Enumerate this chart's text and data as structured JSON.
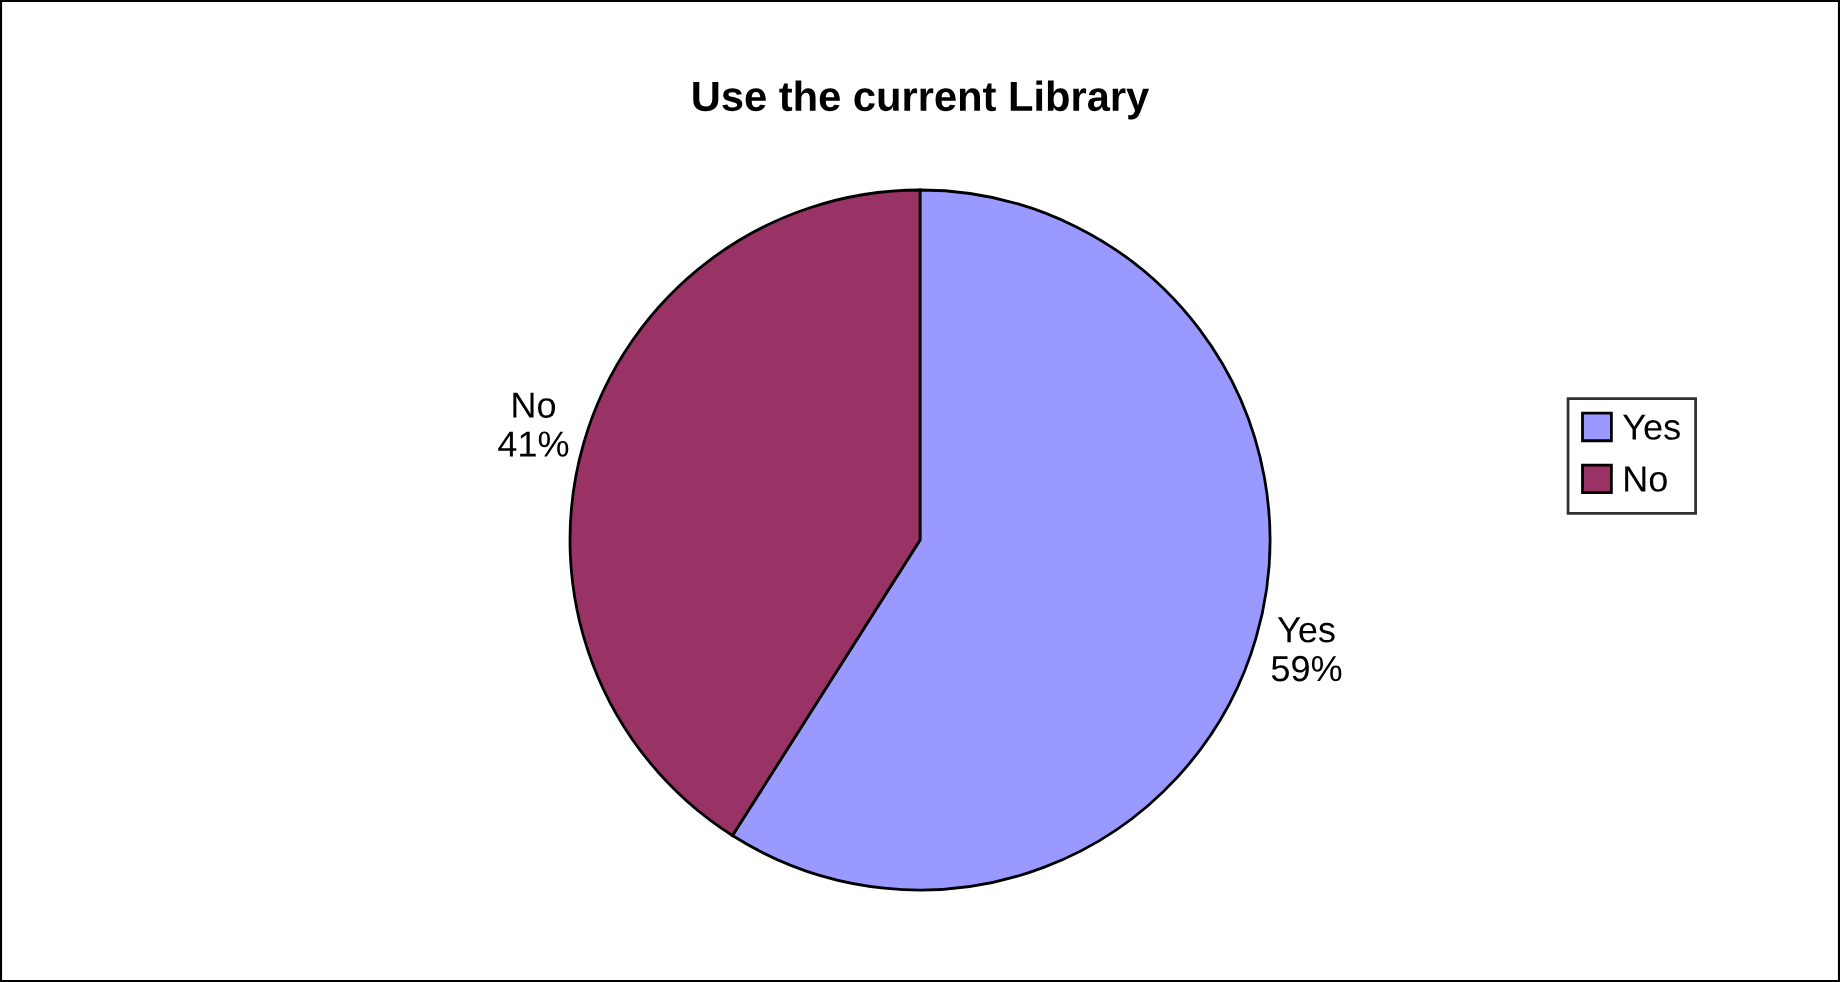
{
  "chart_data": {
    "type": "pie",
    "title": "Use the current Library",
    "categories": [
      "Yes",
      "No"
    ],
    "values": [
      59,
      41
    ],
    "value_labels": [
      "59%",
      "41%"
    ],
    "colors": [
      "#9999ff",
      "#993366"
    ],
    "legend": "right"
  }
}
